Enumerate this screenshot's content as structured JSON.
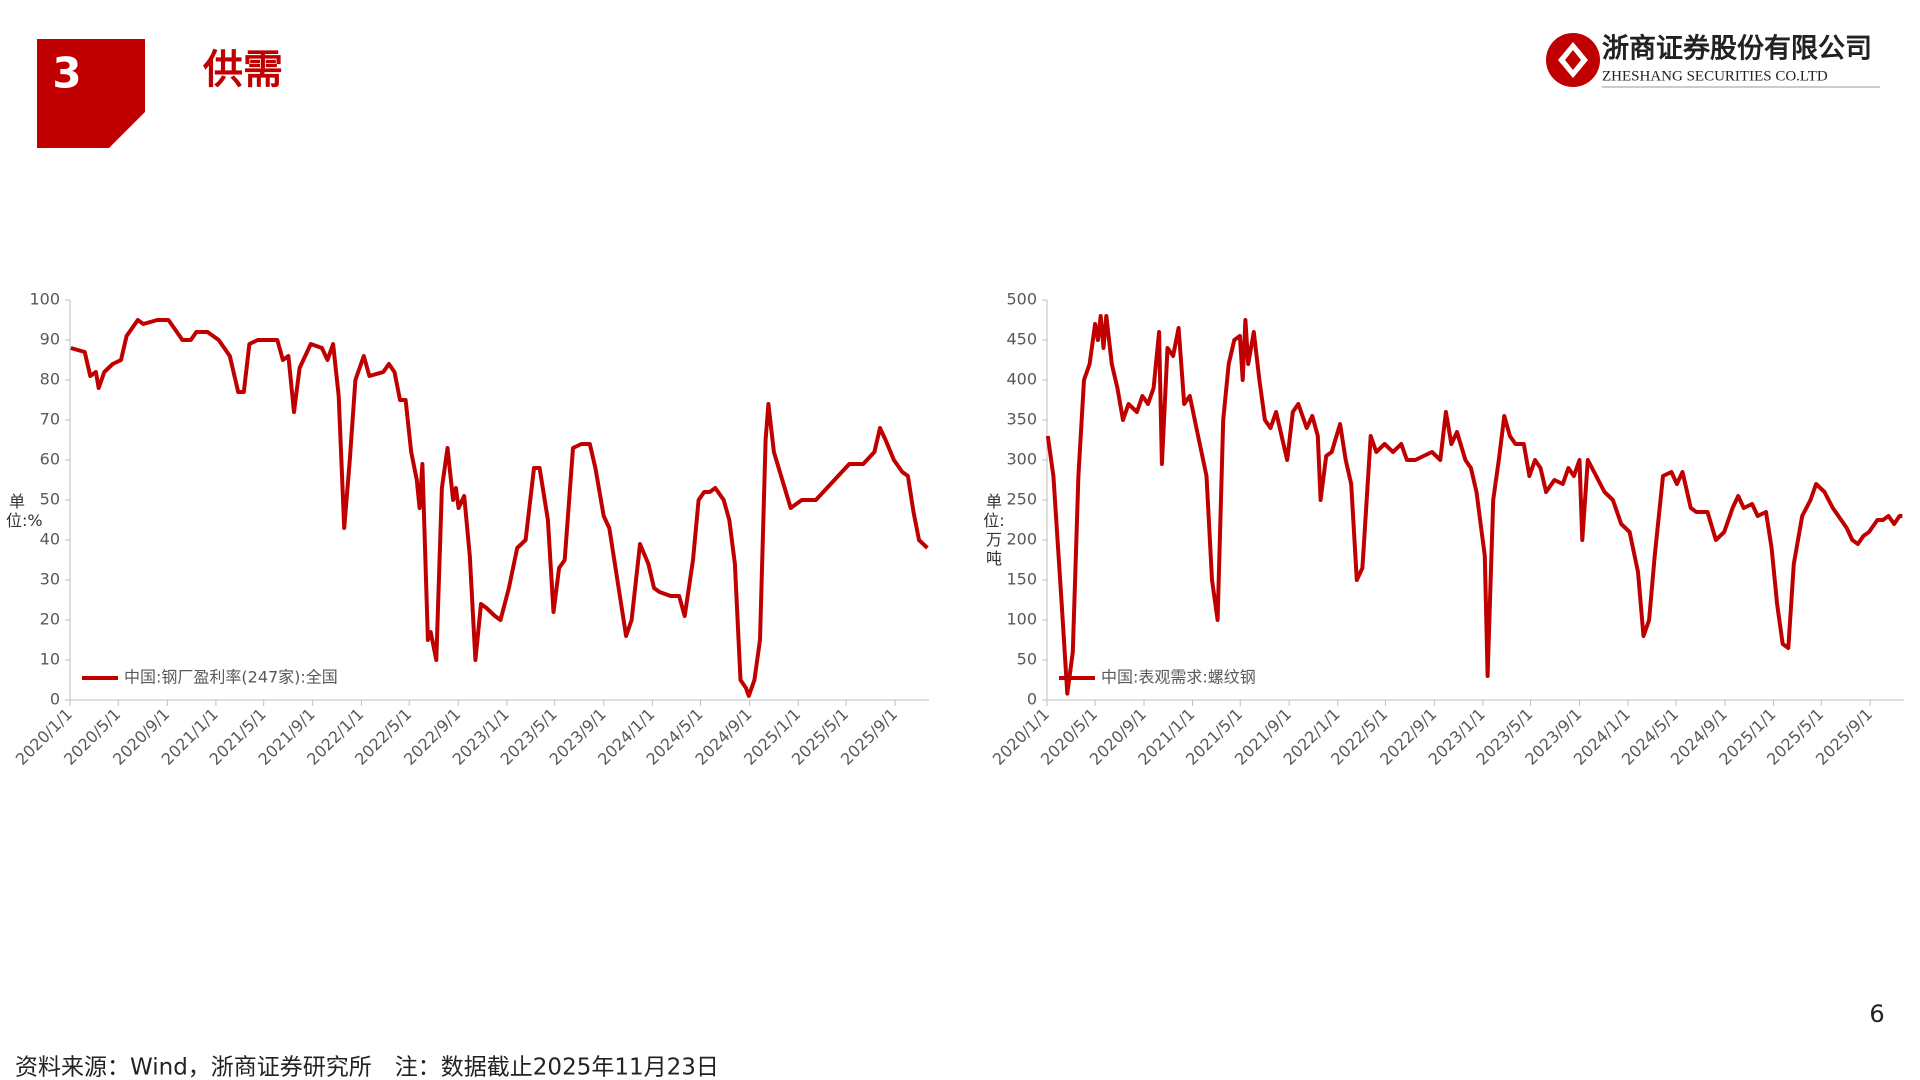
{
  "header": {
    "number": "3",
    "title": "供需",
    "company": "浙商证券股份有限公司",
    "company_en": "ZHESHANG SECURITIES CO.LTD"
  },
  "footer": {
    "source": "资料来源：Wind，浙商证券研究所　注：数据截止2025年11月23日",
    "page": "6"
  },
  "chart_data": [
    {
      "type": "line",
      "y_label": "单位:%",
      "legend": "lower left",
      "grid": false,
      "xlim": [
        "2020/1/1",
        "2025/11/25"
      ],
      "xticks": [
        "2020/1/1",
        "2020/5/1",
        "2020/9/1",
        "2021/1/1",
        "2021/5/1",
        "2021/9/1",
        "2022/1/1",
        "2022/5/1",
        "2022/9/1",
        "2023/1/1",
        "2023/5/1",
        "2023/9/1",
        "2024/1/1",
        "2024/5/1",
        "2024/9/1",
        "2025/1/1",
        "2025/5/1",
        "2025/9/1"
      ],
      "ylim": [
        0,
        100
      ],
      "yticks": [
        0,
        10,
        20,
        30,
        40,
        50,
        60,
        70,
        80,
        90,
        100
      ],
      "x": [
        "2020/1/3",
        "2020/2/7",
        "2020/2/21",
        "2020/3/6",
        "2020/3/13",
        "2020/3/27",
        "2020/4/17",
        "2020/5/8",
        "2020/5/22",
        "2020/6/19",
        "2020/7/3",
        "2020/8/7",
        "2020/9/4",
        "2020/10/9",
        "2020/10/30",
        "2020/11/13",
        "2020/12/11",
        "2021/1/8",
        "2021/2/5",
        "2021/2/26",
        "2021/3/12",
        "2021/3/26",
        "2021/4/16",
        "2021/5/14",
        "2021/6/4",
        "2021/6/18",
        "2021/7/2",
        "2021/7/16",
        "2021/7/30",
        "2021/8/27",
        "2021/9/24",
        "2021/10/8",
        "2021/10/22",
        "2021/11/5",
        "2021/11/19",
        "2021/12/3",
        "2021/12/17",
        "2022/1/7",
        "2022/1/21",
        "2022/2/25",
        "2022/3/11",
        "2022/3/25",
        "2022/4/8",
        "2022/4/22",
        "2022/5/6",
        "2022/5/20",
        "2022/5/27",
        "2022/6/3",
        "2022/6/17",
        "2022/6/24",
        "2022/7/8",
        "2022/7/22",
        "2022/8/5",
        "2022/8/19",
        "2022/8/26",
        "2022/9/2",
        "2022/9/16",
        "2022/9/30",
        "2022/10/14",
        "2022/10/28",
        "2022/11/11",
        "2022/12/2",
        "2022/12/16",
        "2023/1/6",
        "2023/1/27",
        "2023/2/17",
        "2023/3/10",
        "2023/3/24",
        "2023/4/14",
        "2023/4/28",
        "2023/5/12",
        "2023/5/26",
        "2023/6/16",
        "2023/7/7",
        "2023/7/28",
        "2023/8/11",
        "2023/9/1",
        "2023/9/15",
        "2023/10/13",
        "2023/10/27",
        "2023/11/10",
        "2023/12/1",
        "2023/12/22",
        "2024/1/5",
        "2024/1/19",
        "2024/2/16",
        "2024/3/8",
        "2024/3/22",
        "2024/4/12",
        "2024/4/26",
        "2024/5/10",
        "2024/5/24",
        "2024/6/7",
        "2024/6/28",
        "2024/7/12",
        "2024/7/26",
        "2024/8/9",
        "2024/8/23",
        "2024/8/30",
        "2024/9/13",
        "2024/9/27",
        "2024/10/11",
        "2024/10/18",
        "2024/11/1",
        "2024/11/22",
        "2024/12/13",
        "2025/1/10",
        "2025/2/14",
        "2025/3/14",
        "2025/4/11",
        "2025/5/9",
        "2025/6/13",
        "2025/7/11",
        "2025/7/25",
        "2025/8/8",
        "2025/8/29",
        "2025/9/19",
        "2025/10/3",
        "2025/10/17",
        "2025/10/31",
        "2025/11/21"
      ],
      "series": [
        {
          "name": "中国:钢厂盈利率(247家):全国",
          "color": "#c00000",
          "values": [
            88,
            87,
            81,
            82,
            78,
            82,
            84,
            85,
            91,
            95,
            94,
            95,
            95,
            90,
            90,
            92,
            92,
            90,
            86,
            77,
            77,
            89,
            90,
            90,
            90,
            85,
            86,
            72,
            83,
            89,
            88,
            85,
            89,
            76,
            43,
            60,
            80,
            86,
            81,
            82,
            84,
            82,
            75,
            75,
            62,
            55,
            48,
            59,
            15,
            17,
            10,
            53,
            63,
            50,
            53,
            48,
            51,
            36,
            10,
            24,
            23,
            21,
            20,
            28,
            38,
            40,
            58,
            58,
            45,
            22,
            33,
            35,
            63,
            64,
            64,
            58,
            46,
            43,
            25,
            16,
            20,
            39,
            34,
            28,
            27,
            26,
            26,
            21,
            35,
            50,
            52,
            52,
            53,
            50,
            45,
            34,
            5,
            3,
            1,
            5,
            15,
            65,
            74,
            62,
            55,
            48,
            50,
            50,
            53,
            56,
            59,
            59,
            62,
            68,
            65,
            60,
            57,
            56,
            47,
            40,
            38
          ]
        }
      ]
    },
    {
      "type": "line",
      "y_label": "单位:万吨",
      "legend": "lower left",
      "grid": false,
      "xlim": [
        "2020/1/1",
        "2025/11/25"
      ],
      "xticks": [
        "2020/1/1",
        "2020/5/1",
        "2020/9/1",
        "2021/1/1",
        "2021/5/1",
        "2021/9/1",
        "2022/1/1",
        "2022/5/1",
        "2022/9/1",
        "2023/1/1",
        "2023/5/1",
        "2023/9/1",
        "2024/1/1",
        "2024/5/1",
        "2024/9/1",
        "2025/1/1",
        "2025/5/1",
        "2025/9/1"
      ],
      "ylim": [
        0,
        500
      ],
      "yticks": [
        0,
        50,
        100,
        150,
        200,
        250,
        300,
        350,
        400,
        450,
        500
      ],
      "x": [
        "2020/1/3",
        "2020/1/17",
        "2020/2/7",
        "2020/2/21",
        "2020/3/6",
        "2020/3/20",
        "2020/4/3",
        "2020/4/17",
        "2020/5/1",
        "2020/5/8",
        "2020/5/15",
        "2020/5/22",
        "2020/5/29",
        "2020/6/12",
        "2020/6/26",
        "2020/7/10",
        "2020/7/24",
        "2020/8/14",
        "2020/8/28",
        "2020/9/11",
        "2020/9/25",
        "2020/10/9",
        "2020/10/16",
        "2020/10/30",
        "2020/11/13",
        "2020/11/27",
        "2020/12/11",
        "2020/12/25",
        "2021/1/15",
        "2021/2/5",
        "2021/2/19",
        "2021/3/5",
        "2021/3/19",
        "2021/4/2",
        "2021/4/16",
        "2021/4/30",
        "2021/5/7",
        "2021/5/14",
        "2021/5/21",
        "2021/6/4",
        "2021/6/18",
        "2021/7/2",
        "2021/7/16",
        "2021/7/30",
        "2021/8/13",
        "2021/8/27",
        "2021/9/10",
        "2021/9/24",
        "2021/10/15",
        "2021/10/29",
        "2021/11/12",
        "2021/11/19",
        "2021/12/3",
        "2021/12/17",
        "2022/1/7",
        "2022/1/21",
        "2022/2/4",
        "2022/2/18",
        "2022/3/4",
        "2022/3/25",
        "2022/4/8",
        "2022/4/29",
        "2022/5/20",
        "2022/6/10",
        "2022/6/24",
        "2022/7/15",
        "2022/8/5",
        "2022/8/26",
        "2022/9/16",
        "2022/9/30",
        "2022/10/14",
        "2022/10/28",
        "2022/11/18",
        "2022/12/2",
        "2022/12/16",
        "2023/1/6",
        "2023/1/13",
        "2023/1/27",
        "2023/2/10",
        "2023/2/24",
        "2023/3/10",
        "2023/3/24",
        "2023/4/14",
        "2023/4/28",
        "2023/5/12",
        "2023/5/26",
        "2023/6/9",
        "2023/6/30",
        "2023/7/21",
        "2023/8/4",
        "2023/8/18",
        "2023/9/1",
        "2023/9/8",
        "2023/9/22",
        "2023/10/13",
        "2023/11/3",
        "2023/11/24",
        "2023/12/15",
        "2024/1/5",
        "2024/1/26",
        "2024/2/9",
        "2024/2/23",
        "2024/3/8",
        "2024/3/29",
        "2024/4/19",
        "2024/5/3",
        "2024/5/17",
        "2024/6/7",
        "2024/6/21",
        "2024/7/19",
        "2024/8/9",
        "2024/8/30",
        "2024/9/20",
        "2024/10/4",
        "2024/10/18",
        "2024/11/8",
        "2024/11/22",
        "2024/12/13",
        "2024/12/27",
        "2025/1/10",
        "2025/1/24",
        "2025/2/7",
        "2025/2/21",
        "2025/3/14",
        "2025/4/4",
        "2025/4/18",
        "2025/5/9",
        "2025/5/30",
        "2025/6/20",
        "2025/7/4",
        "2025/7/18",
        "2025/8/1",
        "2025/8/15",
        "2025/8/29",
        "2025/9/19",
        "2025/10/3",
        "2025/10/17",
        "2025/10/31",
        "2025/11/14",
        "2025/11/21"
      ],
      "series": [
        {
          "name": "中国:表观需求:螺纹钢",
          "color": "#c00000",
          "values": [
            330,
            280,
            120,
            8,
            60,
            280,
            400,
            420,
            470,
            450,
            480,
            440,
            480,
            420,
            390,
            350,
            370,
            360,
            380,
            370,
            390,
            460,
            295,
            440,
            430,
            465,
            370,
            380,
            330,
            280,
            150,
            100,
            350,
            420,
            450,
            455,
            400,
            475,
            420,
            460,
            400,
            350,
            340,
            360,
            330,
            300,
            360,
            370,
            340,
            355,
            330,
            250,
            305,
            310,
            345,
            300,
            270,
            150,
            165,
            330,
            310,
            320,
            310,
            320,
            300,
            300,
            305,
            310,
            300,
            360,
            320,
            335,
            300,
            290,
            260,
            180,
            30,
            250,
            300,
            355,
            330,
            320,
            320,
            280,
            300,
            290,
            260,
            275,
            270,
            290,
            280,
            300,
            200,
            300,
            280,
            260,
            250,
            220,
            210,
            160,
            80,
            100,
            180,
            280,
            285,
            270,
            285,
            240,
            235,
            235,
            200,
            210,
            240,
            255,
            240,
            245,
            230,
            235,
            190,
            120,
            70,
            65,
            170,
            230,
            250,
            270,
            260,
            240,
            225,
            215,
            200,
            195,
            205,
            210,
            225,
            225,
            230,
            220,
            230,
            230
          ]
        }
      ]
    }
  ]
}
